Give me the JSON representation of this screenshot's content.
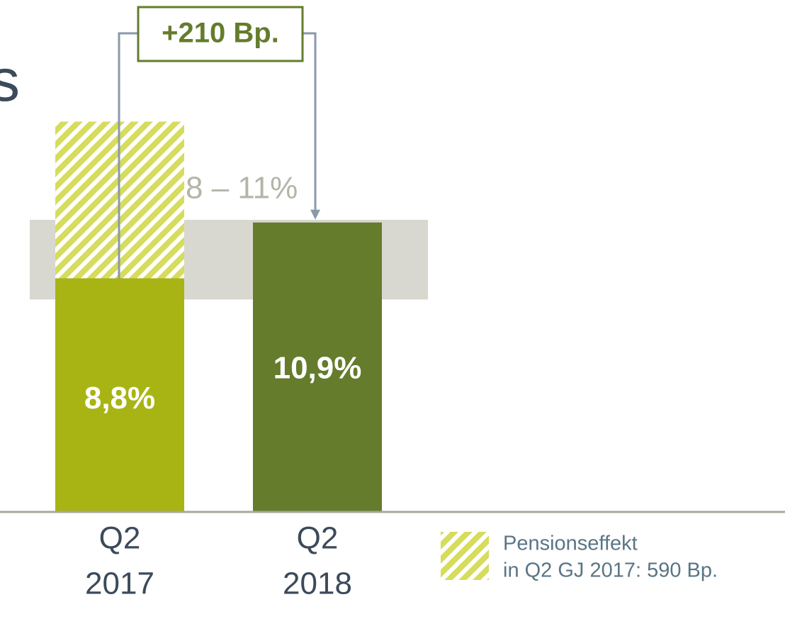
{
  "chart_data": {
    "type": "bar",
    "title": "s",
    "categories": [
      [
        "Q2",
        "2017"
      ],
      [
        "Q2",
        "2018"
      ]
    ],
    "values": [
      8.8,
      10.9
    ],
    "value_labels": [
      "8,8%",
      "10,9%"
    ],
    "colors": [
      "#a8b414",
      "#647c2c"
    ],
    "ylim": [
      0,
      15
    ],
    "stack": {
      "values": [
        5.9,
        null
      ],
      "color": "#d6dc5c"
    },
    "band": {
      "values": [
        8,
        11
      ],
      "label": "8 – 11%",
      "color": "#d8d8d0"
    },
    "annotation": "+210 Bp.",
    "legend": {
      "lines": [
        "Pensionseffekt",
        "in Q2 GJ 2017: 590 Bp."
      ]
    }
  }
}
